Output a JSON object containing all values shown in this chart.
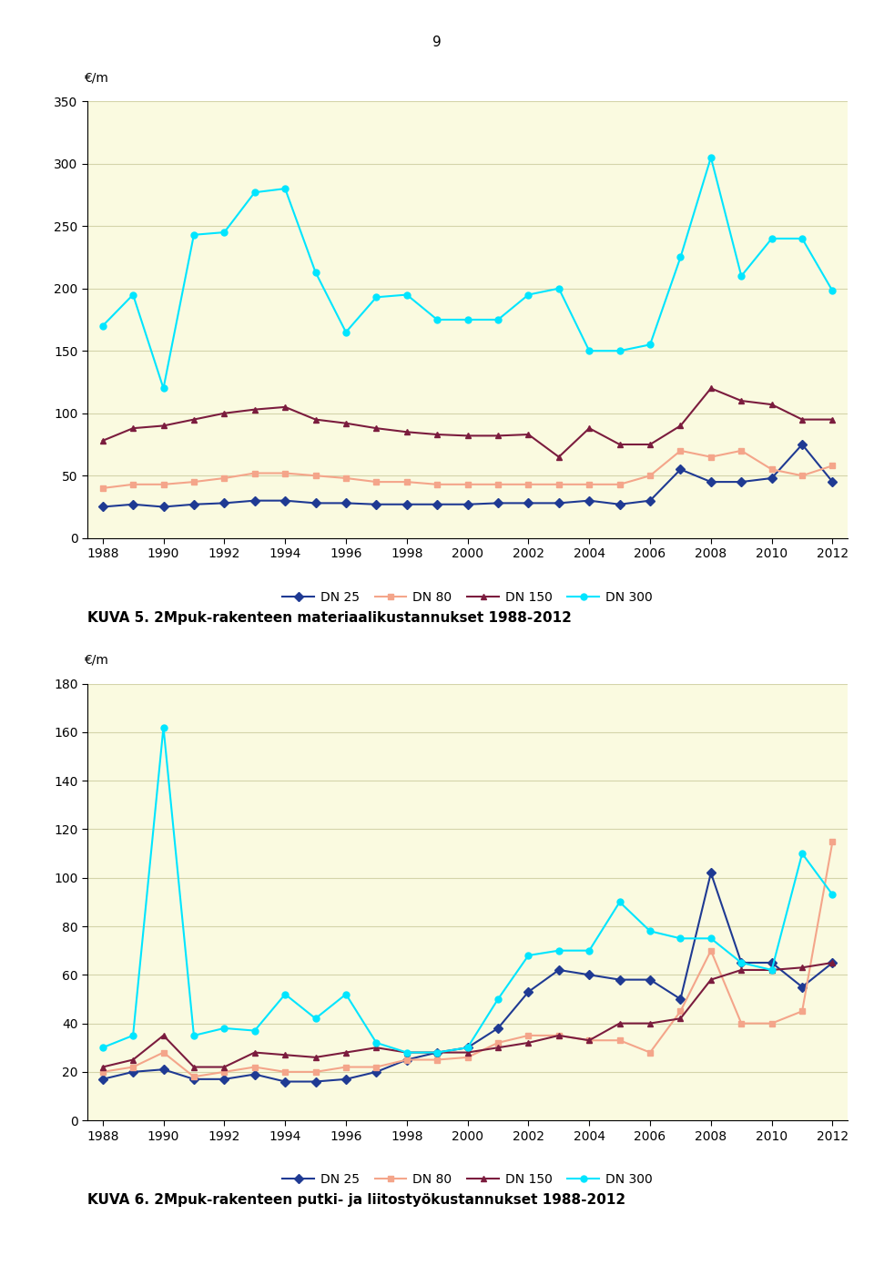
{
  "years": [
    1988,
    1989,
    1990,
    1991,
    1992,
    1993,
    1994,
    1995,
    1996,
    1997,
    1998,
    1999,
    2000,
    2001,
    2002,
    2003,
    2004,
    2005,
    2006,
    2007,
    2008,
    2009,
    2010,
    2011,
    2012
  ],
  "chart1": {
    "title": "KUVA 5. 2Mpuk-rakenteen materiaalikustannukset 1988-2012",
    "ylabel": "€/m",
    "ylim": [
      0,
      350
    ],
    "yticks": [
      0,
      50,
      100,
      150,
      200,
      250,
      300,
      350
    ],
    "dn25": [
      25,
      27,
      25,
      27,
      28,
      30,
      30,
      28,
      28,
      27,
      27,
      27,
      27,
      28,
      28,
      28,
      30,
      27,
      30,
      55,
      45,
      45,
      48,
      75,
      45
    ],
    "dn80": [
      40,
      43,
      43,
      45,
      48,
      52,
      52,
      50,
      48,
      45,
      45,
      43,
      43,
      43,
      43,
      43,
      43,
      43,
      50,
      70,
      65,
      70,
      55,
      50,
      58
    ],
    "dn150": [
      78,
      88,
      90,
      95,
      100,
      103,
      105,
      95,
      92,
      88,
      85,
      83,
      82,
      82,
      83,
      65,
      88,
      75,
      75,
      90,
      120,
      110,
      107,
      95,
      95
    ],
    "dn300": [
      170,
      195,
      120,
      243,
      245,
      277,
      280,
      213,
      165,
      193,
      195,
      175,
      175,
      175,
      195,
      200,
      150,
      150,
      155,
      225,
      305,
      210,
      240,
      240,
      198
    ]
  },
  "chart2": {
    "title": "KUVA 6. 2Mpuk-rakenteen putki- ja liitostyökustannukset 1988-2012",
    "ylabel": "€/m",
    "ylim": [
      0,
      180
    ],
    "yticks": [
      0,
      20,
      40,
      60,
      80,
      100,
      120,
      140,
      160,
      180
    ],
    "dn25": [
      17,
      20,
      21,
      17,
      17,
      19,
      16,
      16,
      17,
      20,
      25,
      28,
      30,
      38,
      53,
      62,
      60,
      58,
      58,
      50,
      102,
      65,
      65,
      55,
      65
    ],
    "dn80": [
      20,
      22,
      28,
      18,
      20,
      22,
      20,
      20,
      22,
      22,
      25,
      25,
      26,
      32,
      35,
      35,
      33,
      33,
      28,
      45,
      70,
      40,
      40,
      45,
      115
    ],
    "dn150": [
      22,
      25,
      35,
      22,
      22,
      28,
      27,
      26,
      28,
      30,
      28,
      28,
      28,
      30,
      32,
      35,
      33,
      40,
      40,
      42,
      58,
      62,
      62,
      63,
      65
    ],
    "dn300": [
      30,
      35,
      162,
      35,
      38,
      37,
      52,
      42,
      52,
      32,
      28,
      28,
      30,
      50,
      68,
      70,
      70,
      90,
      78,
      75,
      75,
      65,
      62,
      110,
      93
    ]
  },
  "page_number": "9",
  "colors": {
    "dn25": "#1F3A93",
    "dn80": "#F4A58A",
    "dn150": "#7B1C3E",
    "dn300": "#00E5FF"
  },
  "bg_color": "#FAFAE0",
  "grid_color": "#D4D4AA",
  "page_num_fontsize": 11,
  "axis_label_fontsize": 10,
  "tick_fontsize": 10,
  "legend_fontsize": 10,
  "caption_fontsize": 11
}
